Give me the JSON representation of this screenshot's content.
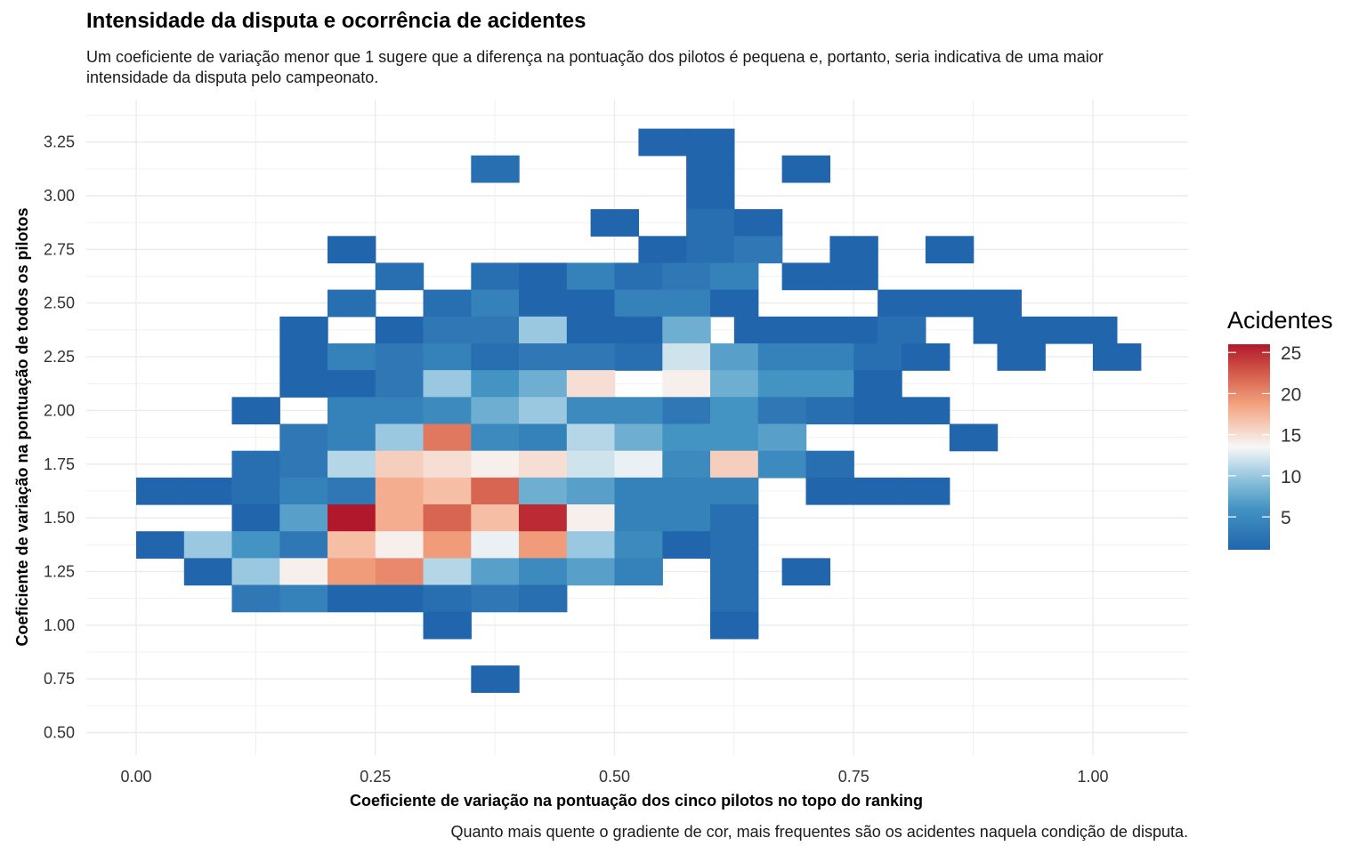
{
  "title": "Intensidade da disputa e ocorrência de acidentes",
  "subtitle": "Um coeficiente de variação menor que 1 sugere que a diferença na pontuação dos pilotos é pequena e, portanto, seria indicativa de uma maior intensidade da disputa pelo campeonato.",
  "caption": "Quanto mais quente o gradiente de cor, mais frequentes são os acidentes naquela condição de disputa.",
  "colors": {
    "low": "#2166ac",
    "mid": "#f7f7f7",
    "high": "#b2182b"
  },
  "chart_data": {
    "type": "heatmap",
    "title": "Intensidade da disputa e ocorrência de acidentes",
    "xlabel": "Coeficiente de variação na pontuação dos cinco pilotos no topo do ranking",
    "ylabel": "Coeficiente de variação na pontuação de todos os pilotos",
    "xlim": [
      -0.025,
      1.025
    ],
    "ylim": [
      0.375,
      3.375
    ],
    "x_ticks": [
      {
        "value": 0.0,
        "label": "0.00"
      },
      {
        "value": 0.25,
        "label": "0.25"
      },
      {
        "value": 0.5,
        "label": "0.50"
      },
      {
        "value": 0.75,
        "label": "0.75"
      },
      {
        "value": 1.0,
        "label": "1.00"
      }
    ],
    "y_ticks": [
      {
        "value": 0.5,
        "label": "0.50"
      },
      {
        "value": 0.75,
        "label": "0.75"
      },
      {
        "value": 1.0,
        "label": "1.00"
      },
      {
        "value": 1.25,
        "label": "1.25"
      },
      {
        "value": 1.5,
        "label": "1.50"
      },
      {
        "value": 1.75,
        "label": "1.75"
      },
      {
        "value": 2.0,
        "label": "2.00"
      },
      {
        "value": 2.25,
        "label": "2.25"
      },
      {
        "value": 2.5,
        "label": "2.50"
      },
      {
        "value": 2.75,
        "label": "2.75"
      },
      {
        "value": 3.0,
        "label": "3.00"
      },
      {
        "value": 3.25,
        "label": "3.25"
      }
    ],
    "bin_width_x": 0.05,
    "bin_height_y": 0.125,
    "grid": true,
    "legend": {
      "title": "Acidentes",
      "position": "right",
      "min": 1,
      "max": 26,
      "ticks": [
        {
          "value": 5,
          "label": "5"
        },
        {
          "value": 10,
          "label": "10"
        },
        {
          "value": 15,
          "label": "15"
        },
        {
          "value": 20,
          "label": "20"
        },
        {
          "value": 25,
          "label": "25"
        }
      ]
    },
    "cells": [
      {
        "x": 0.55,
        "y": 3.25,
        "value": 1
      },
      {
        "x": 0.6,
        "y": 3.25,
        "value": 1
      },
      {
        "x": 0.375,
        "y": 3.125,
        "value": 2
      },
      {
        "x": 0.6,
        "y": 3.125,
        "value": 1
      },
      {
        "x": 0.7,
        "y": 3.125,
        "value": 1
      },
      {
        "x": 0.6,
        "y": 3.0,
        "value": 1
      },
      {
        "x": 0.5,
        "y": 2.875,
        "value": 1
      },
      {
        "x": 0.6,
        "y": 2.875,
        "value": 2
      },
      {
        "x": 0.65,
        "y": 2.875,
        "value": 1
      },
      {
        "x": 0.225,
        "y": 2.75,
        "value": 1
      },
      {
        "x": 0.55,
        "y": 2.75,
        "value": 1
      },
      {
        "x": 0.6,
        "y": 2.75,
        "value": 2
      },
      {
        "x": 0.65,
        "y": 2.75,
        "value": 3
      },
      {
        "x": 0.75,
        "y": 2.75,
        "value": 1
      },
      {
        "x": 0.85,
        "y": 2.75,
        "value": 1
      },
      {
        "x": 0.275,
        "y": 2.625,
        "value": 2
      },
      {
        "x": 0.375,
        "y": 2.625,
        "value": 2
      },
      {
        "x": 0.425,
        "y": 2.625,
        "value": 1
      },
      {
        "x": 0.475,
        "y": 2.625,
        "value": 4
      },
      {
        "x": 0.525,
        "y": 2.625,
        "value": 2
      },
      {
        "x": 0.575,
        "y": 2.625,
        "value": 3
      },
      {
        "x": 0.625,
        "y": 2.625,
        "value": 4
      },
      {
        "x": 0.7,
        "y": 2.625,
        "value": 1
      },
      {
        "x": 0.75,
        "y": 2.625,
        "value": 1
      },
      {
        "x": 0.225,
        "y": 2.5,
        "value": 2
      },
      {
        "x": 0.325,
        "y": 2.5,
        "value": 2
      },
      {
        "x": 0.375,
        "y": 2.5,
        "value": 4
      },
      {
        "x": 0.425,
        "y": 2.5,
        "value": 1
      },
      {
        "x": 0.475,
        "y": 2.5,
        "value": 1
      },
      {
        "x": 0.525,
        "y": 2.5,
        "value": 4
      },
      {
        "x": 0.575,
        "y": 2.5,
        "value": 4
      },
      {
        "x": 0.625,
        "y": 2.5,
        "value": 1
      },
      {
        "x": 0.8,
        "y": 2.5,
        "value": 1
      },
      {
        "x": 0.85,
        "y": 2.5,
        "value": 1
      },
      {
        "x": 0.9,
        "y": 2.5,
        "value": 1
      },
      {
        "x": 0.175,
        "y": 2.375,
        "value": 1
      },
      {
        "x": 0.275,
        "y": 2.375,
        "value": 1
      },
      {
        "x": 0.325,
        "y": 2.375,
        "value": 3
      },
      {
        "x": 0.375,
        "y": 2.375,
        "value": 3
      },
      {
        "x": 0.425,
        "y": 2.375,
        "value": 10
      },
      {
        "x": 0.475,
        "y": 2.375,
        "value": 1
      },
      {
        "x": 0.525,
        "y": 2.375,
        "value": 1
      },
      {
        "x": 0.575,
        "y": 2.375,
        "value": 8
      },
      {
        "x": 0.65,
        "y": 2.375,
        "value": 1
      },
      {
        "x": 0.7,
        "y": 2.375,
        "value": 1
      },
      {
        "x": 0.75,
        "y": 2.375,
        "value": 1
      },
      {
        "x": 0.8,
        "y": 2.375,
        "value": 2
      },
      {
        "x": 0.9,
        "y": 2.375,
        "value": 1
      },
      {
        "x": 0.95,
        "y": 2.375,
        "value": 1
      },
      {
        "x": 1.0,
        "y": 2.375,
        "value": 1
      },
      {
        "x": 0.175,
        "y": 2.25,
        "value": 1
      },
      {
        "x": 0.225,
        "y": 2.25,
        "value": 4
      },
      {
        "x": 0.275,
        "y": 2.25,
        "value": 3
      },
      {
        "x": 0.325,
        "y": 2.25,
        "value": 4
      },
      {
        "x": 0.375,
        "y": 2.25,
        "value": 2
      },
      {
        "x": 0.425,
        "y": 2.25,
        "value": 3
      },
      {
        "x": 0.475,
        "y": 2.25,
        "value": 3
      },
      {
        "x": 0.525,
        "y": 2.25,
        "value": 2
      },
      {
        "x": 0.575,
        "y": 2.25,
        "value": 12
      },
      {
        "x": 0.625,
        "y": 2.25,
        "value": 7
      },
      {
        "x": 0.675,
        "y": 2.25,
        "value": 4
      },
      {
        "x": 0.725,
        "y": 2.25,
        "value": 4
      },
      {
        "x": 0.775,
        "y": 2.25,
        "value": 2
      },
      {
        "x": 0.825,
        "y": 2.25,
        "value": 1
      },
      {
        "x": 0.925,
        "y": 2.25,
        "value": 1
      },
      {
        "x": 1.025,
        "y": 2.25,
        "value": 1
      },
      {
        "x": 0.175,
        "y": 2.125,
        "value": 1
      },
      {
        "x": 0.225,
        "y": 2.125,
        "value": 1
      },
      {
        "x": 0.275,
        "y": 2.125,
        "value": 3
      },
      {
        "x": 0.325,
        "y": 2.125,
        "value": 10
      },
      {
        "x": 0.375,
        "y": 2.125,
        "value": 6
      },
      {
        "x": 0.425,
        "y": 2.125,
        "value": 8
      },
      {
        "x": 0.475,
        "y": 2.125,
        "value": 15
      },
      {
        "x": 0.575,
        "y": 2.125,
        "value": 14
      },
      {
        "x": 0.625,
        "y": 2.125,
        "value": 8
      },
      {
        "x": 0.675,
        "y": 2.125,
        "value": 6
      },
      {
        "x": 0.725,
        "y": 2.125,
        "value": 6
      },
      {
        "x": 0.775,
        "y": 2.125,
        "value": 1
      },
      {
        "x": 0.125,
        "y": 2.0,
        "value": 1
      },
      {
        "x": 0.225,
        "y": 2.0,
        "value": 4
      },
      {
        "x": 0.275,
        "y": 2.0,
        "value": 4
      },
      {
        "x": 0.325,
        "y": 2.0,
        "value": 5
      },
      {
        "x": 0.375,
        "y": 2.0,
        "value": 8
      },
      {
        "x": 0.425,
        "y": 2.0,
        "value": 10
      },
      {
        "x": 0.475,
        "y": 2.0,
        "value": 5
      },
      {
        "x": 0.525,
        "y": 2.0,
        "value": 5
      },
      {
        "x": 0.575,
        "y": 2.0,
        "value": 3
      },
      {
        "x": 0.625,
        "y": 2.0,
        "value": 6
      },
      {
        "x": 0.675,
        "y": 2.0,
        "value": 3
      },
      {
        "x": 0.725,
        "y": 2.0,
        "value": 2
      },
      {
        "x": 0.775,
        "y": 2.0,
        "value": 1
      },
      {
        "x": 0.825,
        "y": 2.0,
        "value": 1
      },
      {
        "x": 0.175,
        "y": 1.875,
        "value": 3
      },
      {
        "x": 0.225,
        "y": 1.875,
        "value": 4
      },
      {
        "x": 0.275,
        "y": 1.875,
        "value": 10
      },
      {
        "x": 0.325,
        "y": 1.875,
        "value": 21
      },
      {
        "x": 0.375,
        "y": 1.875,
        "value": 5
      },
      {
        "x": 0.425,
        "y": 1.875,
        "value": 4
      },
      {
        "x": 0.475,
        "y": 1.875,
        "value": 11
      },
      {
        "x": 0.525,
        "y": 1.875,
        "value": 8
      },
      {
        "x": 0.575,
        "y": 1.875,
        "value": 6
      },
      {
        "x": 0.625,
        "y": 1.875,
        "value": 6
      },
      {
        "x": 0.675,
        "y": 1.875,
        "value": 7
      },
      {
        "x": 0.875,
        "y": 1.875,
        "value": 1
      },
      {
        "x": 0.125,
        "y": 1.75,
        "value": 2
      },
      {
        "x": 0.175,
        "y": 1.75,
        "value": 3
      },
      {
        "x": 0.225,
        "y": 1.75,
        "value": 11
      },
      {
        "x": 0.275,
        "y": 1.75,
        "value": 16
      },
      {
        "x": 0.325,
        "y": 1.75,
        "value": 15
      },
      {
        "x": 0.375,
        "y": 1.75,
        "value": 14
      },
      {
        "x": 0.425,
        "y": 1.75,
        "value": 15
      },
      {
        "x": 0.475,
        "y": 1.75,
        "value": 12
      },
      {
        "x": 0.525,
        "y": 1.75,
        "value": 13
      },
      {
        "x": 0.575,
        "y": 1.75,
        "value": 5
      },
      {
        "x": 0.625,
        "y": 1.75,
        "value": 16
      },
      {
        "x": 0.675,
        "y": 1.75,
        "value": 5
      },
      {
        "x": 0.725,
        "y": 1.75,
        "value": 2
      },
      {
        "x": 0.025,
        "y": 1.625,
        "value": 1
      },
      {
        "x": 0.075,
        "y": 1.625,
        "value": 1
      },
      {
        "x": 0.125,
        "y": 1.625,
        "value": 2
      },
      {
        "x": 0.175,
        "y": 1.625,
        "value": 4
      },
      {
        "x": 0.225,
        "y": 1.625,
        "value": 3
      },
      {
        "x": 0.275,
        "y": 1.625,
        "value": 18
      },
      {
        "x": 0.325,
        "y": 1.625,
        "value": 17
      },
      {
        "x": 0.375,
        "y": 1.625,
        "value": 22
      },
      {
        "x": 0.425,
        "y": 1.625,
        "value": 8
      },
      {
        "x": 0.475,
        "y": 1.625,
        "value": 7
      },
      {
        "x": 0.525,
        "y": 1.625,
        "value": 4
      },
      {
        "x": 0.575,
        "y": 1.625,
        "value": 4
      },
      {
        "x": 0.625,
        "y": 1.625,
        "value": 4
      },
      {
        "x": 0.725,
        "y": 1.625,
        "value": 1
      },
      {
        "x": 0.775,
        "y": 1.625,
        "value": 1
      },
      {
        "x": 0.825,
        "y": 1.625,
        "value": 1
      },
      {
        "x": 0.125,
        "y": 1.5,
        "value": 1
      },
      {
        "x": 0.175,
        "y": 1.5,
        "value": 7
      },
      {
        "x": 0.225,
        "y": 1.5,
        "value": 26
      },
      {
        "x": 0.275,
        "y": 1.5,
        "value": 18
      },
      {
        "x": 0.325,
        "y": 1.5,
        "value": 22
      },
      {
        "x": 0.375,
        "y": 1.5,
        "value": 17
      },
      {
        "x": 0.425,
        "y": 1.5,
        "value": 25
      },
      {
        "x": 0.475,
        "y": 1.5,
        "value": 14
      },
      {
        "x": 0.525,
        "y": 1.5,
        "value": 4
      },
      {
        "x": 0.575,
        "y": 1.5,
        "value": 4
      },
      {
        "x": 0.625,
        "y": 1.5,
        "value": 2
      },
      {
        "x": 0.025,
        "y": 1.375,
        "value": 1
      },
      {
        "x": 0.075,
        "y": 1.375,
        "value": 10
      },
      {
        "x": 0.125,
        "y": 1.375,
        "value": 6
      },
      {
        "x": 0.175,
        "y": 1.375,
        "value": 3
      },
      {
        "x": 0.225,
        "y": 1.375,
        "value": 17
      },
      {
        "x": 0.275,
        "y": 1.375,
        "value": 14
      },
      {
        "x": 0.325,
        "y": 1.375,
        "value": 19
      },
      {
        "x": 0.375,
        "y": 1.375,
        "value": 13
      },
      {
        "x": 0.425,
        "y": 1.375,
        "value": 19
      },
      {
        "x": 0.475,
        "y": 1.375,
        "value": 10
      },
      {
        "x": 0.525,
        "y": 1.375,
        "value": 5
      },
      {
        "x": 0.575,
        "y": 1.375,
        "value": 1
      },
      {
        "x": 0.625,
        "y": 1.375,
        "value": 2
      },
      {
        "x": 0.075,
        "y": 1.25,
        "value": 1
      },
      {
        "x": 0.125,
        "y": 1.25,
        "value": 10
      },
      {
        "x": 0.175,
        "y": 1.25,
        "value": 14
      },
      {
        "x": 0.225,
        "y": 1.25,
        "value": 19
      },
      {
        "x": 0.275,
        "y": 1.25,
        "value": 20
      },
      {
        "x": 0.325,
        "y": 1.25,
        "value": 11
      },
      {
        "x": 0.375,
        "y": 1.25,
        "value": 7
      },
      {
        "x": 0.425,
        "y": 1.25,
        "value": 5
      },
      {
        "x": 0.475,
        "y": 1.25,
        "value": 7
      },
      {
        "x": 0.525,
        "y": 1.25,
        "value": 4
      },
      {
        "x": 0.625,
        "y": 1.25,
        "value": 2
      },
      {
        "x": 0.7,
        "y": 1.25,
        "value": 1
      },
      {
        "x": 0.125,
        "y": 1.125,
        "value": 3
      },
      {
        "x": 0.175,
        "y": 1.125,
        "value": 4
      },
      {
        "x": 0.225,
        "y": 1.125,
        "value": 1
      },
      {
        "x": 0.275,
        "y": 1.125,
        "value": 1
      },
      {
        "x": 0.325,
        "y": 1.125,
        "value": 2
      },
      {
        "x": 0.375,
        "y": 1.125,
        "value": 3
      },
      {
        "x": 0.425,
        "y": 1.125,
        "value": 2
      },
      {
        "x": 0.625,
        "y": 1.125,
        "value": 2
      },
      {
        "x": 0.325,
        "y": 1.0,
        "value": 1
      },
      {
        "x": 0.625,
        "y": 1.0,
        "value": 1
      },
      {
        "x": 0.375,
        "y": 0.75,
        "value": 1
      }
    ]
  }
}
